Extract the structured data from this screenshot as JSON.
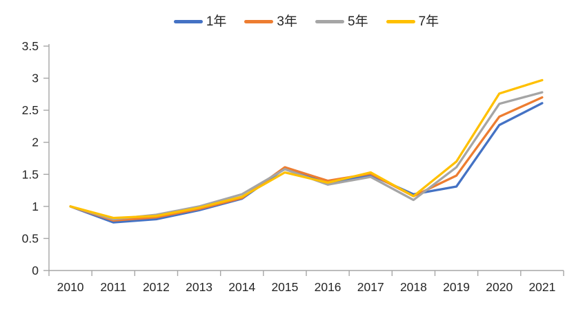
{
  "chart_data": {
    "type": "line",
    "title": "",
    "categories": [
      "2010",
      "2011",
      "2012",
      "2013",
      "2014",
      "2015",
      "2016",
      "2017",
      "2018",
      "2019",
      "2020",
      "2021"
    ],
    "series": [
      {
        "name": "1年",
        "color": "#4472C4",
        "values": [
          1.0,
          0.75,
          0.8,
          0.94,
          1.12,
          1.59,
          1.36,
          1.49,
          1.19,
          1.31,
          2.27,
          2.61
        ]
      },
      {
        "name": "3年",
        "color": "#ED7D31",
        "values": [
          1.0,
          0.78,
          0.83,
          0.96,
          1.13,
          1.61,
          1.4,
          1.51,
          1.16,
          1.48,
          2.4,
          2.7
        ]
      },
      {
        "name": "5年",
        "color": "#A5A5A5",
        "values": [
          1.0,
          0.8,
          0.87,
          1.0,
          1.19,
          1.58,
          1.34,
          1.46,
          1.1,
          1.61,
          2.6,
          2.78
        ]
      },
      {
        "name": "7年",
        "color": "#FFC000",
        "values": [
          1.0,
          0.82,
          0.85,
          0.98,
          1.15,
          1.53,
          1.37,
          1.53,
          1.16,
          1.7,
          2.76,
          2.97
        ]
      }
    ],
    "ylim": [
      0,
      3.5
    ],
    "ytick_step": 0.5,
    "ytick_labels": [
      "0",
      "0.5",
      "1",
      "1.5",
      "2",
      "2.5",
      "3",
      "3.5"
    ],
    "grid": false,
    "legend_position": "top",
    "axis_color": "#A6A6A6",
    "label_color": "#262626"
  }
}
